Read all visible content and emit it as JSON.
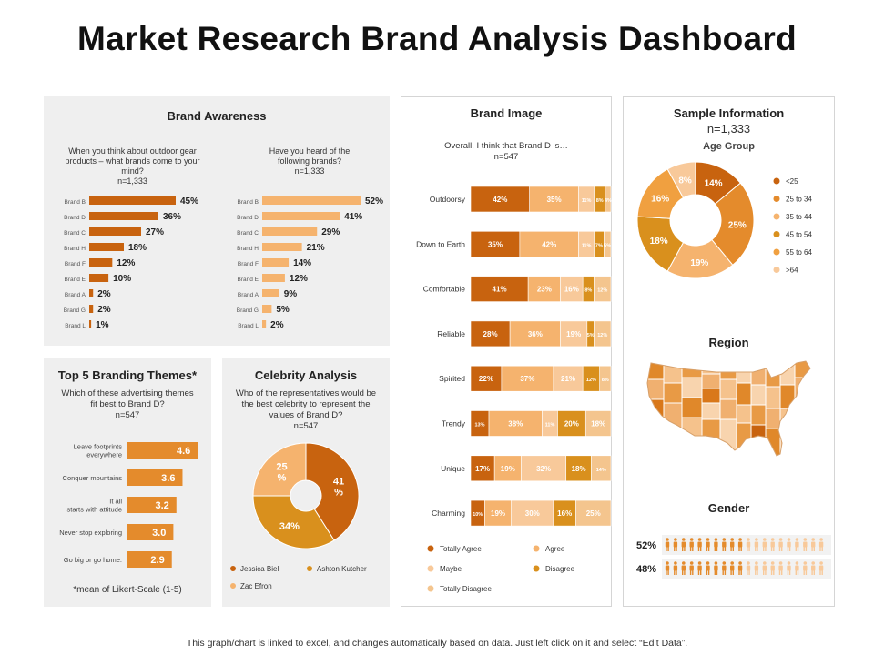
{
  "title": "Market Research Brand Analysis Dashboard",
  "footer": "This graph/chart is linked to excel, and changes automatically based on data. Just left click on it and select “Edit Data”.",
  "colors": {
    "dark": "#c8630f",
    "orange": "#e48b2c",
    "light": "#f5b36e",
    "pale": "#f8c99a",
    "gold": "#d9901d",
    "panel_bg": "#efefef"
  },
  "awareness": {
    "title": "Brand Awareness",
    "q1": "When you think about outdoor gear products – what brands come to your mind?",
    "q1_n": "n=1,333",
    "q2": "Have you heard of the following brands?",
    "q2_n": "n=1,333"
  },
  "themes": {
    "title": "Top 5 Branding Themes*",
    "question": "Which of these advertising themes fit best to Brand D?",
    "n": "n=547",
    "note": "*mean of Likert-Scale (1-5)"
  },
  "celebrity": {
    "title": "Celebrity Analysis",
    "question": "Who of the representatives would be the best celebrity to represent the values of Brand D?",
    "n": "n=547",
    "legend": [
      "Jessica Biel",
      "Ashton Kutcher",
      "Zac Efron"
    ]
  },
  "image": {
    "title": "Brand Image",
    "question": "Overall, I think that Brand D is…",
    "n": "n=547",
    "legend": [
      "Totally Agree",
      "Agree",
      "Maybe",
      "Disagree",
      "Totally Disagree"
    ]
  },
  "sample": {
    "title": "Sample Information",
    "n": "n=1,333",
    "age_title": "Age Group",
    "age_legend": [
      "<25",
      "25 to 34",
      "35 to 44",
      "45 to 54",
      "55 to 64",
      ">64"
    ],
    "region_title": "Region",
    "gender_title": "Gender",
    "gender_values": [
      "52%",
      "48%"
    ]
  },
  "chart_data": [
    {
      "id": "top_of_mind",
      "type": "bar",
      "orientation": "horizontal",
      "categories": [
        "Brand B",
        "Brand D",
        "Brand C",
        "Brand H",
        "Brand F",
        "Brand E",
        "Brand A",
        "Brand G",
        "Brand L"
      ],
      "values": [
        45,
        36,
        27,
        18,
        12,
        10,
        2,
        2,
        1
      ],
      "labels": [
        "45%",
        "36%",
        "27%",
        "18%",
        "12%",
        "10%",
        "2%",
        "2%",
        "1%"
      ],
      "unit": "%"
    },
    {
      "id": "aided_awareness",
      "type": "bar",
      "orientation": "horizontal",
      "categories": [
        "Brand B",
        "Brand D",
        "Brand C",
        "Brand H",
        "Brand F",
        "Brand E",
        "Brand A",
        "Brand G",
        "Brand L"
      ],
      "values": [
        52,
        41,
        29,
        21,
        14,
        12,
        9,
        5,
        2
      ],
      "labels": [
        "52%",
        "41%",
        "29%",
        "21%",
        "14%",
        "12%",
        "9%",
        "5%",
        "2%"
      ],
      "unit": "%"
    },
    {
      "id": "branding_themes",
      "type": "bar",
      "orientation": "horizontal",
      "categories": [
        "Leave footprints everywhere",
        "Conquer mountains",
        "It all starts with attitude",
        "Never stop exploring",
        "Go big or go home."
      ],
      "values": [
        4.6,
        3.6,
        3.2,
        3.0,
        2.9
      ],
      "labels": [
        "4.6",
        "3.6",
        "3.2",
        "3.0",
        "2.9"
      ],
      "xlim": [
        0,
        5
      ]
    },
    {
      "id": "celebrity",
      "type": "pie",
      "donut": true,
      "categories": [
        "Jessica Biel",
        "Ashton Kutcher",
        "Zac Efron"
      ],
      "values": [
        41,
        34,
        25
      ],
      "labels": [
        "41\n%",
        "34%",
        "25\n%"
      ]
    },
    {
      "id": "brand_image",
      "type": "bar",
      "stacked": true,
      "orientation": "horizontal",
      "categories": [
        "Outdoorsy",
        "Down to Earth",
        "Comfortable",
        "Reliable",
        "Spirited",
        "Trendy",
        "Unique",
        "Charming"
      ],
      "series": [
        {
          "name": "Totally Agree",
          "values": [
            42,
            35,
            41,
            28,
            22,
            13,
            17,
            10
          ],
          "labels": [
            "42%",
            "35%",
            "41%",
            "28%",
            "22%",
            "13%",
            "17%",
            "10%"
          ]
        },
        {
          "name": "Agree",
          "values": [
            35,
            42,
            23,
            36,
            37,
            38,
            19,
            19
          ],
          "labels": [
            "35%",
            "42%",
            "23%",
            "36%",
            "37%",
            "38%",
            "19%",
            "19%"
          ]
        },
        {
          "name": "Maybe",
          "values": [
            11,
            11,
            16,
            19,
            21,
            11,
            32,
            30
          ],
          "labels": [
            "11%",
            "11%",
            "16%",
            "19%",
            "21%",
            "11%",
            "32%",
            "30%"
          ]
        },
        {
          "name": "Disagree",
          "values": [
            8,
            7,
            8,
            5,
            12,
            20,
            18,
            16
          ],
          "labels": [
            "8%",
            "7%",
            "8%",
            "5%",
            "12%",
            "20%",
            "18%",
            "16%"
          ]
        },
        {
          "name": "Totally Disagree",
          "values": [
            4,
            5,
            12,
            12,
            8,
            18,
            14,
            25
          ],
          "labels": [
            "4%",
            "5%",
            "12%",
            "12%",
            "8%",
            "18%",
            "14%",
            "25%"
          ]
        }
      ],
      "xlim": [
        0,
        100
      ]
    },
    {
      "id": "age_group",
      "type": "pie",
      "donut": true,
      "categories": [
        "<25",
        "25 to 34",
        "35 to 44",
        "45 to 54",
        "55 to 64",
        ">64"
      ],
      "values": [
        14,
        25,
        19,
        18,
        16,
        8
      ],
      "labels": [
        "14%",
        "25%",
        "19%",
        "18%",
        "16%",
        "8%"
      ]
    },
    {
      "id": "gender",
      "type": "bar",
      "categories": [
        "Male",
        "Female"
      ],
      "values": [
        52,
        48
      ],
      "labels": [
        "52%",
        "48%"
      ],
      "icons_total": 20
    }
  ]
}
